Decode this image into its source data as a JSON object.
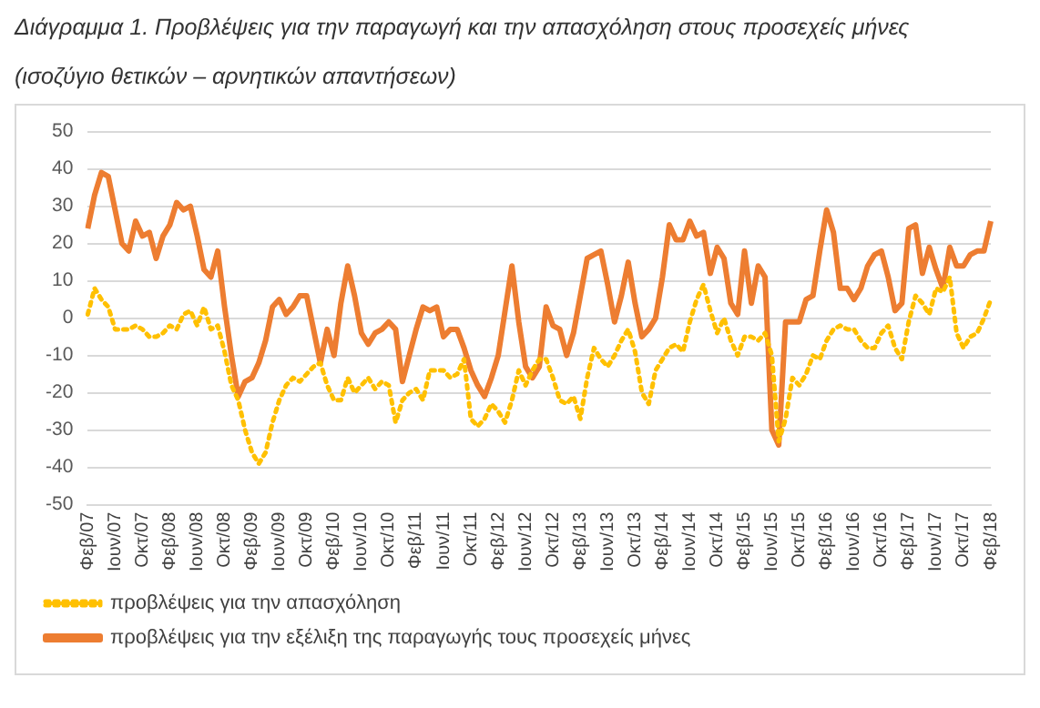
{
  "chart_data": {
    "type": "line",
    "title": "Διάγραμμα 1. Προβλέψεις για την παραγωγή και την απασχόληση στους προσεχείς μήνες",
    "subtitle": "(ισοζύγιο θετικών – αρνητικών απαντήσεων)",
    "categories": [
      "Φεβ/07",
      null,
      null,
      null,
      "Ιουν/07",
      null,
      null,
      null,
      "Οκτ/07",
      null,
      null,
      null,
      "Φεβ/08",
      null,
      null,
      null,
      "Ιουν/08",
      null,
      null,
      null,
      "Οκτ/08",
      null,
      null,
      null,
      "Φεβ/09",
      null,
      null,
      null,
      "Ιουν/09",
      null,
      null,
      null,
      "Οκτ/09",
      null,
      null,
      null,
      "Φεβ/10",
      null,
      null,
      null,
      "Ιουν/10",
      null,
      null,
      null,
      "Οκτ/10",
      null,
      null,
      null,
      "Φεβ/11",
      null,
      null,
      null,
      "Ιουν/11",
      null,
      null,
      null,
      "Οκτ/11",
      null,
      null,
      null,
      "Φεβ/12",
      null,
      null,
      null,
      "Ιουν/12",
      null,
      null,
      null,
      "Οκτ/12",
      null,
      null,
      null,
      "Φεβ/13",
      null,
      null,
      null,
      "Ιουν/13",
      null,
      null,
      null,
      "Οκτ/13",
      null,
      null,
      null,
      "Φεβ/14",
      null,
      null,
      null,
      "Ιουν/14",
      null,
      null,
      null,
      "Οκτ/14",
      null,
      null,
      null,
      "Φεβ/15",
      null,
      null,
      null,
      "Ιουν/15",
      null,
      null,
      null,
      "Οκτ/15",
      null,
      null,
      null,
      "Φεβ/16",
      null,
      null,
      null,
      "Ιουν/16",
      null,
      null,
      null,
      "Οκτ/16",
      null,
      null,
      null,
      "Φεβ/17",
      null,
      null,
      null,
      "Ιουν/17",
      null,
      null,
      null,
      "Οκτ/17",
      null,
      null,
      null,
      "Φεβ/18"
    ],
    "series": [
      {
        "name": "προβλέψεις για την απασχόληση",
        "color": "#ffc000",
        "line_style": "dotted",
        "values": [
          1,
          8,
          5,
          3,
          -3,
          -3,
          -3,
          -2,
          -3,
          -5,
          -5,
          -4,
          -2,
          -3,
          1,
          2,
          -2,
          3,
          -3,
          -2,
          -9,
          -18,
          -22,
          -30,
          -36,
          -39,
          -36,
          -28,
          -22,
          -18,
          -16,
          -17,
          -15,
          -13,
          -12,
          -18,
          -22,
          -22,
          -16,
          -20,
          -18,
          -16,
          -19,
          -17,
          -18,
          -28,
          -22,
          -20,
          -19,
          -22,
          -14,
          -14,
          -14,
          -16,
          -15,
          -11,
          -27,
          -29,
          -27,
          -23,
          -25,
          -28,
          -22,
          -14,
          -18,
          -14,
          -11,
          -11,
          -16,
          -22,
          -23,
          -21,
          -27,
          -16,
          -8,
          -11,
          -13,
          -10,
          -6,
          -3,
          -9,
          -20,
          -23,
          -14,
          -11,
          -8,
          -7,
          -9,
          -1,
          5,
          9,
          2,
          -4,
          0,
          -6,
          -10,
          -5,
          -5,
          -6,
          -4,
          -10,
          -33,
          -27,
          -16,
          -18,
          -15,
          -10,
          -11,
          -6,
          -3,
          -2,
          -3,
          -3,
          -6,
          -8,
          -8,
          -4,
          -2,
          -8,
          -11,
          -1,
          6,
          4,
          1,
          8,
          7,
          11,
          -4,
          -8,
          -5,
          -4,
          0,
          5
        ]
      },
      {
        "name": "προβλέψεις για την εξέλιξη της παραγωγής τους προσεχείς μήνες",
        "color": "#ed7d31",
        "line_style": "solid",
        "values": [
          24,
          33,
          39,
          38,
          29,
          20,
          18,
          26,
          22,
          23,
          16,
          22,
          25,
          31,
          29,
          30,
          22,
          13,
          11,
          18,
          3,
          -10,
          -21,
          -17,
          -16,
          -12,
          -6,
          3,
          5,
          1,
          3,
          6,
          6,
          -3,
          -12,
          -3,
          -10,
          4,
          14,
          6,
          -4,
          -7,
          -4,
          -3,
          -1,
          -3,
          -17,
          -10,
          -3,
          3,
          2,
          3,
          -5,
          -3,
          -3,
          -8,
          -14,
          -18,
          -21,
          -16,
          -10,
          2,
          14,
          -1,
          -13,
          -16,
          -13,
          3,
          -2,
          -3,
          -10,
          -4,
          6,
          16,
          17,
          18,
          9,
          -1,
          6,
          15,
          4,
          -5,
          -3,
          0,
          11,
          25,
          21,
          21,
          26,
          22,
          23,
          12,
          19,
          16,
          4,
          1,
          18,
          4,
          14,
          11,
          -30,
          -34,
          -1,
          -1,
          -1,
          5,
          6,
          18,
          29,
          23,
          8,
          8,
          5,
          8,
          14,
          17,
          18,
          11,
          2,
          4,
          24,
          25,
          12,
          19,
          13,
          8,
          19,
          14,
          14,
          17,
          18,
          18,
          26
        ]
      }
    ],
    "ylim": [
      -50,
      50
    ],
    "yticks": [
      -50,
      -40,
      -30,
      -20,
      -10,
      0,
      10,
      20,
      30,
      40,
      50
    ],
    "grid": "y",
    "legend": "bottom",
    "marker": "none"
  }
}
